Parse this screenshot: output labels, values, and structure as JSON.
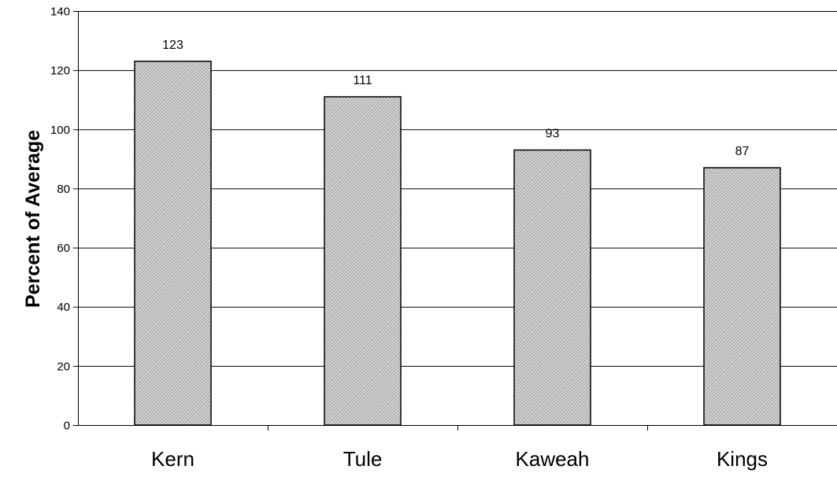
{
  "chart_data": {
    "type": "bar",
    "title": "",
    "xlabel": "",
    "ylabel": "Percent of Average",
    "categories": [
      "Kern",
      "Tule",
      "Kaweah",
      "Kings"
    ],
    "values": [
      123,
      111,
      93,
      87
    ],
    "data_labels": [
      "123",
      "111",
      "93",
      "87"
    ],
    "ylim": [
      0,
      140
    ],
    "yticks": [
      0,
      20,
      40,
      60,
      80,
      100,
      120,
      140
    ],
    "grid": true,
    "legend": "none",
    "bar_fill": "diagonal-hatch gray",
    "colors": {
      "bar_stroke": "#000000",
      "grid": "#000000",
      "hatch": "#7a7a7a",
      "background": "#ffffff"
    }
  }
}
